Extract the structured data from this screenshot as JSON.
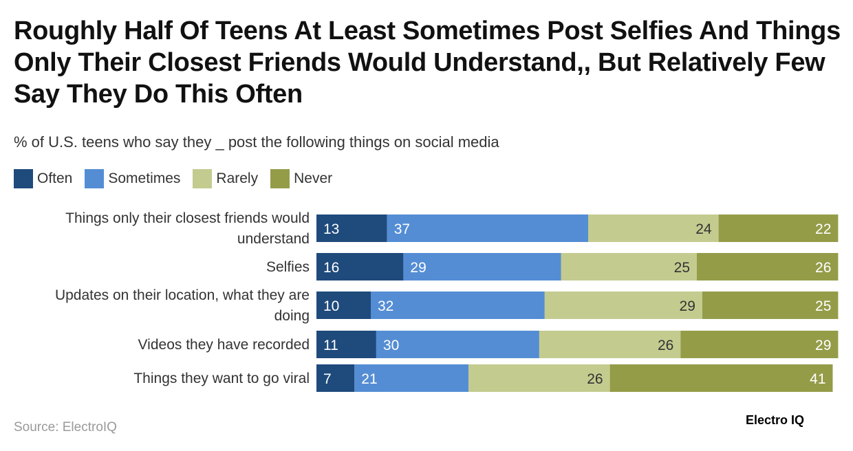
{
  "title": "Roughly Half Of Teens At Least Sometimes Post Selfies And Things Only Their Closest Friends Would Understand,, But Relatively Few Say They Do This Often",
  "subtitle": "% of U.S. teens who say they _ post the following things on social media",
  "source": "Source: ElectroIQ",
  "logo_text": "Electro IQ",
  "chart_data": {
    "type": "bar",
    "orientation": "horizontal",
    "stacked": true,
    "legend_position": "top-left",
    "grid": false,
    "categories": [
      [
        "Things only their closest friends would",
        "understand"
      ],
      [
        "Selfies"
      ],
      [
        "Updates on their location, what they are",
        "doing"
      ],
      [
        "Videos they have recorded"
      ],
      [
        "Things they want to go viral"
      ]
    ],
    "series": [
      {
        "name": "Often",
        "color": "#1f4a7c",
        "label_color": "#ffffff",
        "label_align": "start",
        "values": [
          13,
          16,
          10,
          11,
          7
        ]
      },
      {
        "name": "Sometimes",
        "color": "#548dd4",
        "label_color": "#ffffff",
        "label_align": "start",
        "values": [
          37,
          29,
          32,
          30,
          21
        ]
      },
      {
        "name": "Rarely",
        "color": "#c4cb8f",
        "label_color": "#333333",
        "label_align": "end",
        "values": [
          24,
          25,
          29,
          26,
          26
        ]
      },
      {
        "name": "Never",
        "color": "#949c48",
        "label_color": "#ffffff",
        "label_align": "end",
        "values": [
          22,
          26,
          25,
          29,
          41
        ]
      }
    ]
  }
}
